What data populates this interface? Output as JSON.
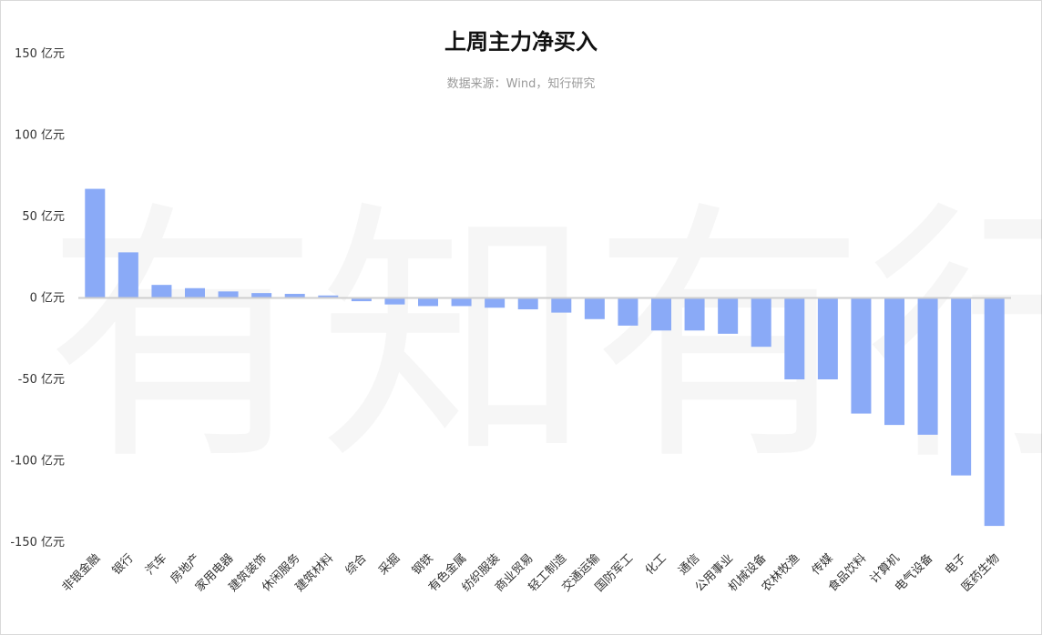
{
  "watermark": "有知有行",
  "chart_data": {
    "type": "bar",
    "title": "上周主力净买入",
    "subtitle": "数据来源：Wind，知行研究",
    "ylim": [
      -150,
      150
    ],
    "yticks": [
      {
        "value": 150,
        "label": "150 亿元"
      },
      {
        "value": 100,
        "label": "100 亿元"
      },
      {
        "value": 50,
        "label": "50 亿元"
      },
      {
        "value": 0,
        "label": "0 亿元"
      },
      {
        "value": -50,
        "label": "-50 亿元"
      },
      {
        "value": -100,
        "label": "-100 亿元"
      },
      {
        "value": -150,
        "label": "-150 亿元"
      }
    ],
    "bar_color": "#8aaaf7",
    "categories": [
      "非银金融",
      "银行",
      "汽车",
      "房地产",
      "家用电器",
      "建筑装饰",
      "休闲服务",
      "建筑材料",
      "综合",
      "采掘",
      "钢铁",
      "有色金属",
      "纺织服装",
      "商业贸易",
      "轻工制造",
      "交通运输",
      "国防军工",
      "化工",
      "通信",
      "公用事业",
      "机械设备",
      "农林牧渔",
      "传媒",
      "食品饮料",
      "计算机",
      "电气设备",
      "电子",
      "医药生物"
    ],
    "values": [
      67,
      28,
      8,
      6,
      4,
      3,
      2.5,
      1.5,
      -2,
      -4,
      -5,
      -5,
      -6,
      -7,
      -9,
      -13,
      -17,
      -20,
      -20,
      -22,
      -30,
      -50,
      -50,
      -71,
      -78,
      -84,
      -109,
      -140
    ]
  }
}
